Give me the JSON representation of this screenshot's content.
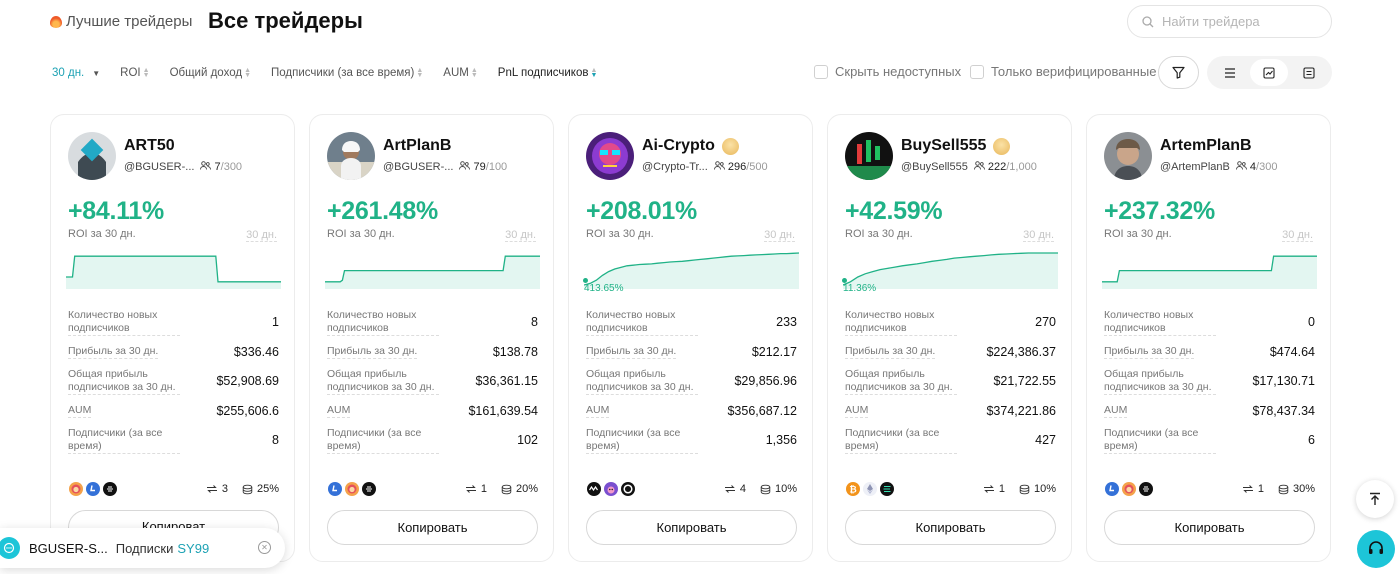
{
  "nav": {
    "best_label": "Лучшие трейдеры",
    "all_label": "Все трейдеры"
  },
  "search": {
    "placeholder": "Найти трейдера"
  },
  "filters": {
    "period": "30 дн.",
    "roi": "ROI",
    "total_income": "Общий доход",
    "subscribers_all_time": "Подписчики (за все время)",
    "aum": "AUM",
    "pnl_subscribers": "PnL подписчиков"
  },
  "checkboxes": {
    "hide_unavailable": "Скрыть недоступных",
    "verified_only": "Только верифицированные"
  },
  "stat_labels": {
    "new_subs": "Количество новых подписчиков",
    "profit_30d": "Прибыль за 30 дн.",
    "subs_profit_30d": "Общая прибыль подписчиков за 30 дн.",
    "aum": "AUM",
    "subs_all_time": "Подписчики (за все время)"
  },
  "roi_label": "ROI за 30 дн.",
  "days_tag": "30 дн.",
  "copy_label": "Копировать",
  "copy_label_partial": "Копироват",
  "traders": [
    {
      "name": "ART50",
      "handle": "@BGUSER-...",
      "subs": "7",
      "subs_max": "/300",
      "crown": false,
      "roi": "+84.11%",
      "min_label": "",
      "new_subs": "1",
      "profit": "$336.46",
      "subs_profit": "$52,908.69",
      "aum": "$255,606.6",
      "subs_all": "8",
      "coins": [
        "shib",
        "ltc",
        "dark"
      ],
      "copies": "3",
      "share": "25%",
      "spark": [
        0.25,
        0.25,
        0.25,
        0.25,
        0.9,
        0.9,
        0.9,
        0.9,
        0.9,
        0.9,
        0.9,
        0.9,
        0.9,
        0.9,
        0.9,
        0.9,
        0.9,
        0.9,
        0.9,
        0.9,
        0.9,
        0.9,
        0.9,
        0.9,
        0.9,
        0.9,
        0.9,
        0.9,
        0.9,
        0.9,
        0.9,
        0.9,
        0.9,
        0.9,
        0.9,
        0.9,
        0.9,
        0.9,
        0.9,
        0.9,
        0.9,
        0.9,
        0.9,
        0.9,
        0.9,
        0.9,
        0.9,
        0.9,
        0.9,
        0.9,
        0.9,
        0.9,
        0.9,
        0.9,
        0.9,
        0.9,
        0.9,
        0.9,
        0.9,
        0.9,
        0.9,
        0.9,
        0.9,
        0.9,
        0.9,
        0.9,
        0.9,
        0.9,
        0.9,
        0.9,
        0.1,
        0.1,
        0.1,
        0.1,
        0.1,
        0.1,
        0.1,
        0.1,
        0.1,
        0.1,
        0.1,
        0.1,
        0.1,
        0.1,
        0.1,
        0.1,
        0.1,
        0.1,
        0.1,
        0.1,
        0.1,
        0.1,
        0.1,
        0.1,
        0.1,
        0.1,
        0.1,
        0.1,
        0.1,
        0.1
      ]
    },
    {
      "name": "ArtPlanB",
      "handle": "@BGUSER-...",
      "subs": "79",
      "subs_max": "/100",
      "crown": false,
      "roi": "+261.48%",
      "min_label": "",
      "new_subs": "8",
      "profit": "$138.78",
      "subs_profit": "$36,361.15",
      "aum": "$161,639.54",
      "subs_all": "102",
      "coins": [
        "ltc",
        "shib",
        "dark"
      ],
      "copies": "1",
      "share": "20%",
      "spark": [
        0.1,
        0.1,
        0.1,
        0.1,
        0.1,
        0.1,
        0.1,
        0.1,
        0.15,
        0.45,
        0.45,
        0.45,
        0.45,
        0.45,
        0.45,
        0.45,
        0.45,
        0.45,
        0.45,
        0.45,
        0.45,
        0.45,
        0.45,
        0.45,
        0.45,
        0.45,
        0.45,
        0.45,
        0.45,
        0.45,
        0.45,
        0.45,
        0.45,
        0.45,
        0.45,
        0.45,
        0.45,
        0.45,
        0.45,
        0.45,
        0.45,
        0.45,
        0.45,
        0.45,
        0.45,
        0.45,
        0.45,
        0.45,
        0.45,
        0.45,
        0.45,
        0.45,
        0.45,
        0.45,
        0.45,
        0.45,
        0.45,
        0.45,
        0.45,
        0.45,
        0.45,
        0.45,
        0.45,
        0.45,
        0.45,
        0.45,
        0.45,
        0.45,
        0.45,
        0.45,
        0.45,
        0.45,
        0.45,
        0.45,
        0.45,
        0.45,
        0.45,
        0.45,
        0.45,
        0.45,
        0.45,
        0.45,
        0.45,
        0.9,
        0.9,
        0.9,
        0.9,
        0.9,
        0.9,
        0.9,
        0.9,
        0.9,
        0.9,
        0.9,
        0.9,
        0.9,
        0.9,
        0.9,
        0.9,
        0.9
      ]
    },
    {
      "name": "Ai-Crypto",
      "handle": "@Crypto-Tr...",
      "subs": "296",
      "subs_max": "/500",
      "crown": true,
      "roi": "+208.01%",
      "min_label": "413.65%",
      "new_subs": "233",
      "profit": "$212.17",
      "subs_profit": "$29,856.96",
      "aum": "$356,687.12",
      "subs_all": "1,356",
      "coins": [
        "wave",
        "cat",
        "ring"
      ],
      "copies": "4",
      "share": "10%",
      "spark": [
        0.0,
        0.05,
        0.15,
        0.3,
        0.42,
        0.5,
        0.55,
        0.6,
        0.62,
        0.64,
        0.65,
        0.66,
        0.68,
        0.7,
        0.72,
        0.73,
        0.74,
        0.76,
        0.78,
        0.8,
        0.82,
        0.84,
        0.86,
        0.88,
        0.9,
        0.91,
        0.92,
        0.93,
        0.94,
        0.95,
        0.96,
        0.97,
        0.98,
        0.98,
        0.99,
        1.0
      ]
    },
    {
      "name": "BuySell555",
      "handle": "@BuySell555",
      "subs": "222",
      "subs_max": "/1,000",
      "crown": true,
      "roi": "+42.59%",
      "min_label": "11.36%",
      "new_subs": "270",
      "profit": "$224,386.37",
      "subs_profit": "$21,722.55",
      "aum": "$374,221.86",
      "subs_all": "427",
      "coins": [
        "btc",
        "eth",
        "sol"
      ],
      "copies": "1",
      "share": "10%",
      "spark": [
        0.0,
        0.1,
        0.25,
        0.35,
        0.42,
        0.48,
        0.52,
        0.56,
        0.6,
        0.63,
        0.66,
        0.7,
        0.74,
        0.77,
        0.8,
        0.84,
        0.86,
        0.88,
        0.9,
        0.92,
        0.94,
        0.96,
        0.97,
        0.98,
        0.99,
        1.0,
        1.0,
        1.0,
        1.0,
        1.0
      ]
    },
    {
      "name": "ArtemPlanB",
      "handle": "@ArtemPlanB",
      "subs": "4",
      "subs_max": "/300",
      "crown": false,
      "roi": "+237.32%",
      "min_label": "",
      "new_subs": "0",
      "profit": "$474.64",
      "subs_profit": "$17,130.71",
      "aum": "$78,437.34",
      "subs_all": "6",
      "coins": [
        "ltc",
        "shib",
        "dark"
      ],
      "copies": "1",
      "share": "30%",
      "spark": [
        0.1,
        0.1,
        0.1,
        0.1,
        0.1,
        0.1,
        0.1,
        0.1,
        0.45,
        0.45,
        0.45,
        0.45,
        0.45,
        0.45,
        0.45,
        0.45,
        0.45,
        0.45,
        0.45,
        0.45,
        0.45,
        0.45,
        0.45,
        0.45,
        0.45,
        0.45,
        0.45,
        0.45,
        0.45,
        0.45,
        0.45,
        0.45,
        0.45,
        0.45,
        0.45,
        0.45,
        0.45,
        0.45,
        0.45,
        0.45,
        0.45,
        0.45,
        0.45,
        0.45,
        0.45,
        0.45,
        0.45,
        0.45,
        0.45,
        0.45,
        0.45,
        0.45,
        0.45,
        0.45,
        0.45,
        0.45,
        0.45,
        0.45,
        0.45,
        0.45,
        0.45,
        0.45,
        0.45,
        0.45,
        0.45,
        0.45,
        0.45,
        0.45,
        0.45,
        0.45,
        0.45,
        0.45,
        0.45,
        0.45,
        0.45,
        0.45,
        0.45,
        0.45,
        0.45,
        0.9,
        0.9,
        0.9,
        0.9,
        0.9,
        0.9,
        0.9,
        0.9,
        0.9,
        0.9,
        0.9,
        0.9,
        0.9,
        0.9,
        0.9,
        0.9,
        0.9,
        0.9,
        0.9,
        0.9,
        0.9
      ]
    }
  ],
  "toast": {
    "user": "BGUSER-S...",
    "action": "Подписки",
    "target": "SY99"
  },
  "colors": {
    "accent": "#1da2b4",
    "positive": "#20b287",
    "spark_fill": "#e3f6f1"
  }
}
